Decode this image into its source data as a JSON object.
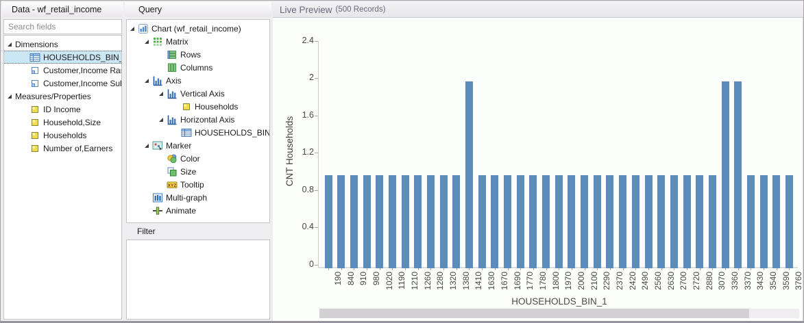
{
  "data_panel": {
    "title": "Data - wf_retail_income",
    "search": {
      "placeholder": "Search fields"
    },
    "tree": [
      {
        "label": "Dimensions",
        "icon": null,
        "level": 0,
        "expanded": true
      },
      {
        "label": "HOUSEHOLDS_BIN_1",
        "icon": "table",
        "level": 1,
        "selected": true
      },
      {
        "label": "Customer,Income Range",
        "icon": "dimension",
        "level": 1
      },
      {
        "label": "Customer,Income Subrang",
        "icon": "dimension",
        "level": 1
      },
      {
        "label": "Measures/Properties",
        "icon": null,
        "level": 0,
        "expanded": true
      },
      {
        "label": "ID Income",
        "icon": "measure",
        "level": 1
      },
      {
        "label": "Household,Size",
        "icon": "measure",
        "level": 1
      },
      {
        "label": "Households",
        "icon": "measure",
        "level": 1
      },
      {
        "label": "Number of,Earners",
        "icon": "measure",
        "level": 1
      }
    ]
  },
  "query_panel": {
    "title": "Query",
    "filter_title": "Filter",
    "tree": [
      {
        "label": "Chart (wf_retail_income)",
        "icon": "chart",
        "level": 0,
        "expanded": true
      },
      {
        "label": "Matrix",
        "icon": "matrix",
        "level": 1,
        "expanded": true
      },
      {
        "label": "Rows",
        "icon": "rows",
        "level": 2
      },
      {
        "label": "Columns",
        "icon": "columns",
        "level": 2
      },
      {
        "label": "Axis",
        "icon": "axis",
        "level": 1,
        "expanded": true
      },
      {
        "label": "Vertical Axis",
        "icon": "axis",
        "level": 2,
        "expanded": true
      },
      {
        "label": "Households",
        "icon": "measure",
        "level": 3
      },
      {
        "label": "Horizontal Axis",
        "icon": "axis",
        "level": 2,
        "expanded": true
      },
      {
        "label": "HOUSEHOLDS_BIN_1",
        "icon": "table",
        "level": 3
      },
      {
        "label": "Marker",
        "icon": "marker",
        "level": 1,
        "expanded": true
      },
      {
        "label": "Color",
        "icon": "color",
        "level": 2
      },
      {
        "label": "Size",
        "icon": "size",
        "level": 2
      },
      {
        "label": "Tooltip",
        "icon": "tooltip",
        "level": 2
      },
      {
        "label": "Multi-graph",
        "icon": "multigraph",
        "level": 1
      },
      {
        "label": "Animate",
        "icon": "animate",
        "level": 1
      }
    ]
  },
  "preview_panel": {
    "title": "Live Preview",
    "records_label": "(500 Records)"
  },
  "chart_data": {
    "type": "bar",
    "title": "",
    "xlabel": "HOUSEHOLDS_BIN_1",
    "ylabel": "CNT Households",
    "categories": [
      "190",
      "840",
      "910",
      "980",
      "1020",
      "1190",
      "1210",
      "1260",
      "1280",
      "1320",
      "1380",
      "1410",
      "1630",
      "1670",
      "1690",
      "1770",
      "1780",
      "1800",
      "1970",
      "2000",
      "2100",
      "2290",
      "2370",
      "2420",
      "2490",
      "2560",
      "2630",
      "2700",
      "2720",
      "2880",
      "3070",
      "3360",
      "3370",
      "3430",
      "3540",
      "3590",
      "3760"
    ],
    "values": [
      1,
      1,
      1,
      1,
      1,
      1,
      1,
      1,
      1,
      1,
      1,
      2,
      1,
      1,
      1,
      1,
      1,
      1,
      1,
      1,
      1,
      1,
      1,
      1,
      1,
      1,
      1,
      1,
      1,
      1,
      1,
      2,
      2,
      1,
      1,
      1,
      1
    ],
    "ylim": [
      0,
      2.4
    ],
    "ytick_labels": [
      "0",
      "0.4",
      "0.8",
      "1.2",
      "1.6",
      "2",
      "2.4"
    ],
    "bar_color": "#5b8cbb",
    "grid": false,
    "legend": false
  },
  "colors": {
    "bar": "#5b8cbb",
    "selection_bg": "#cbe7f6",
    "accent_blue": "#2f7cc0"
  }
}
